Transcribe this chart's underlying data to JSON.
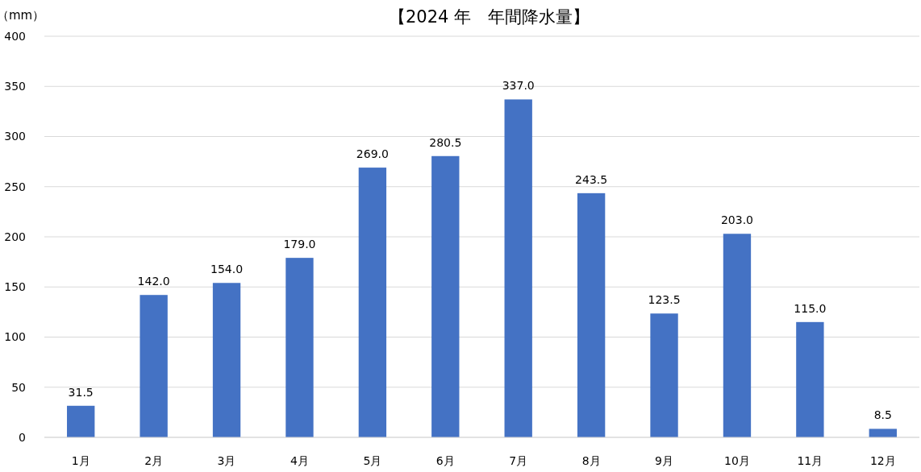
{
  "chart_data": {
    "type": "bar",
    "title": "【2024 年　年間降水量】",
    "ylabel": "（mm）",
    "categories": [
      "1月",
      "2月",
      "3月",
      "4月",
      "5月",
      "6月",
      "7月",
      "8月",
      "9月",
      "10月",
      "11月",
      "12月"
    ],
    "values": [
      31.5,
      142.0,
      154.0,
      179.0,
      269.0,
      280.5,
      337.0,
      243.5,
      123.5,
      203.0,
      115.0,
      8.5
    ],
    "value_labels": [
      "31.5",
      "142.0",
      "154.0",
      "179.0",
      "269.0",
      "280.5",
      "337.0",
      "243.5",
      "123.5",
      "203.0",
      "115.0",
      "8.5"
    ],
    "color": "#4472c4",
    "ylim": [
      0,
      400
    ],
    "yticks": [
      0,
      50,
      100,
      150,
      200,
      250,
      300,
      350,
      400
    ],
    "grid": "y"
  }
}
